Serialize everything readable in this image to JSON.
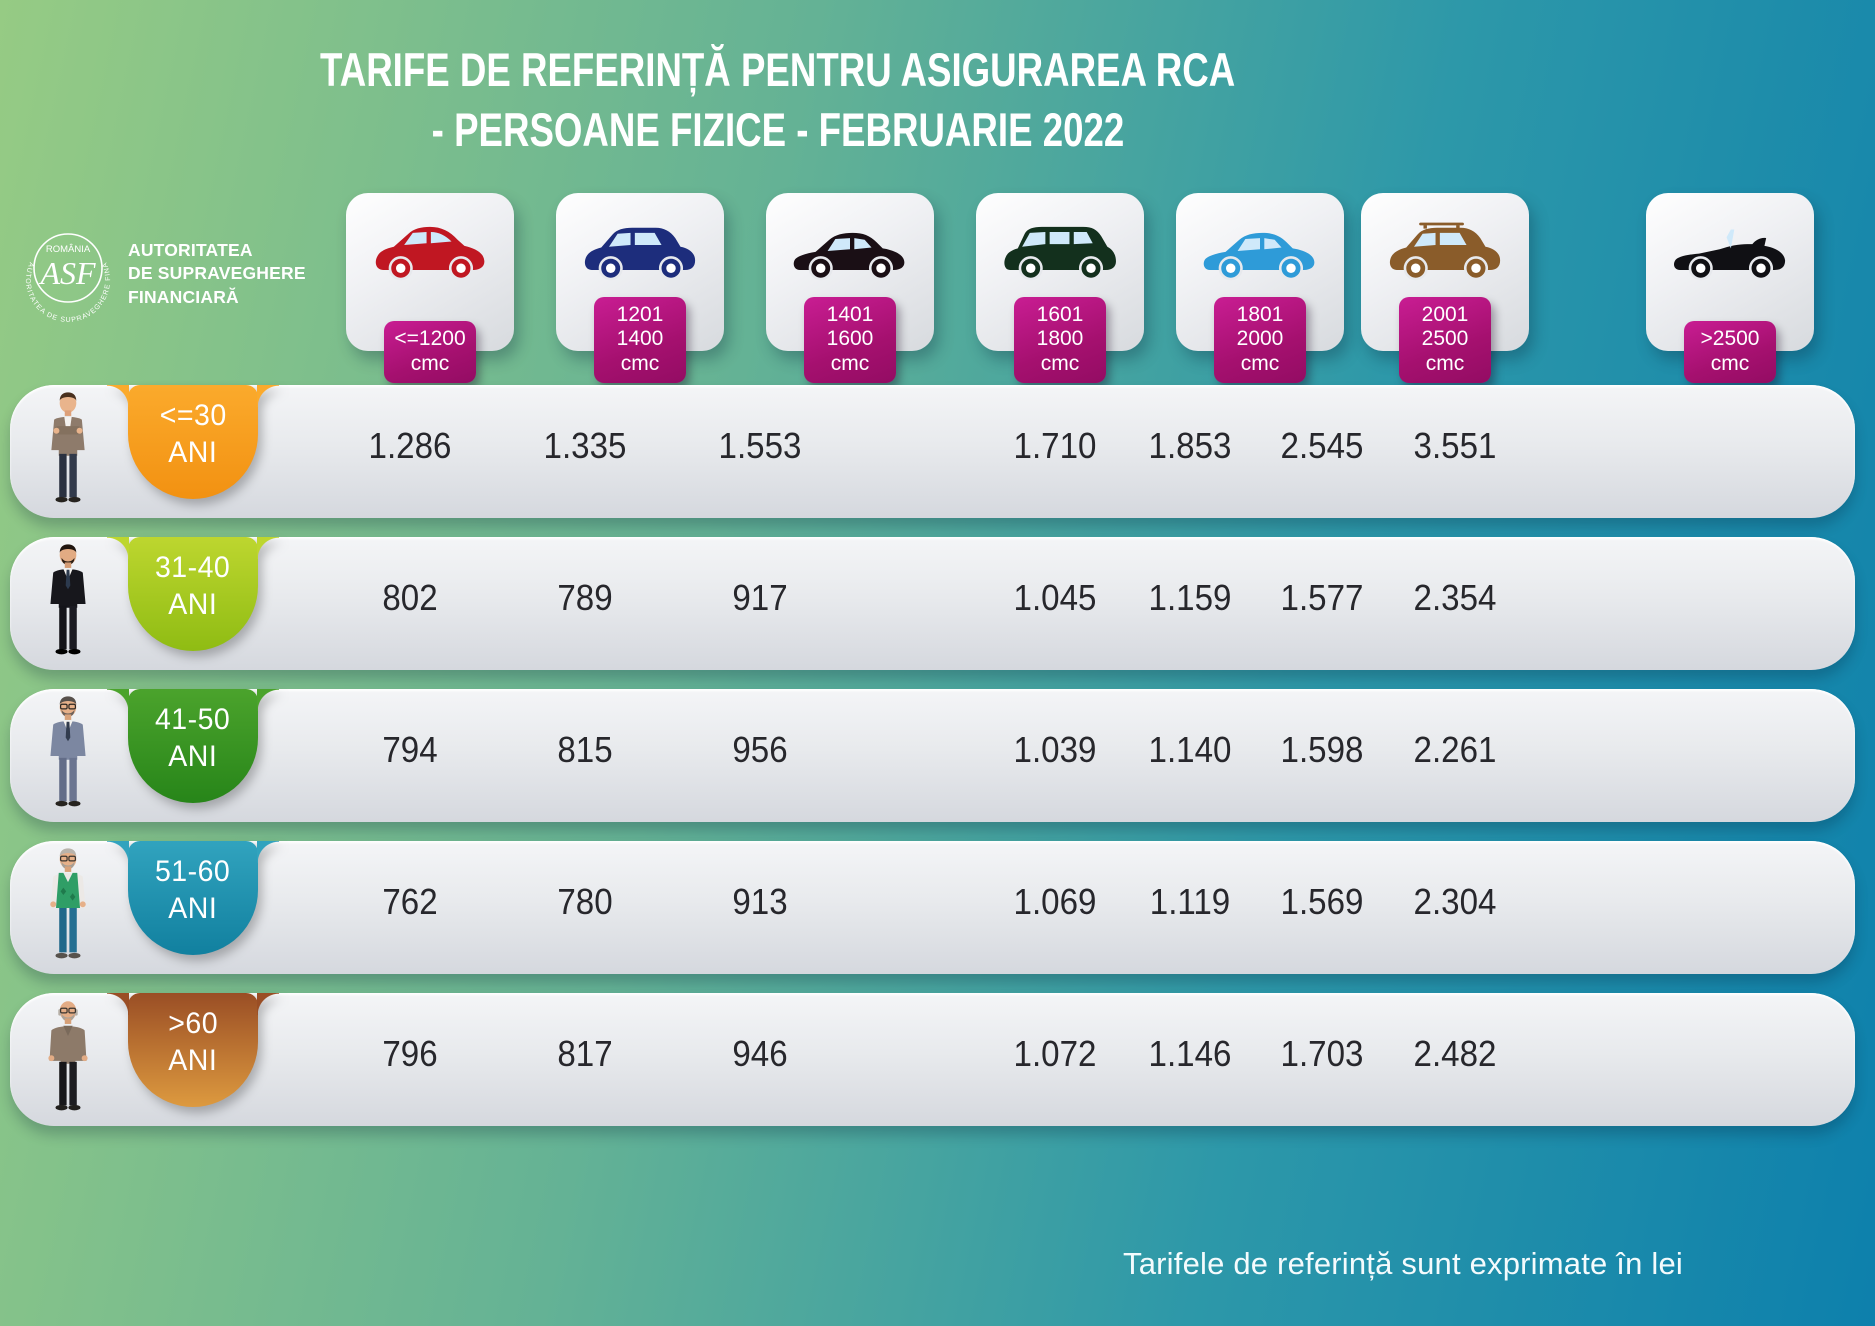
{
  "title": {
    "line1": "TARIFE DE REFERINȚĂ PENTRU ASIGURAREA RCA",
    "line2": "- PERSOANE FIZICE - FEBRUARIE 2022"
  },
  "logo": {
    "country": "ROMÂNIA",
    "monogram": "ASF",
    "ring_text": "AUTORITATEA DE SUPRAVEGHERE FINANCIARĂ",
    "org": [
      "AUTORITATEA",
      "DE SUPRAVEGHERE",
      "FINANCIARĂ"
    ]
  },
  "header": {
    "columns": [
      {
        "car": "hatchback",
        "car_name": "red-hatchback",
        "color": "#c01722",
        "label_lines": [
          "<=1200",
          "cmc"
        ]
      },
      {
        "car": "suv",
        "car_name": "dark-blue-crossover",
        "color": "#1d2d7c",
        "label_lines": [
          "1201",
          "1400",
          "cmc"
        ]
      },
      {
        "car": "sedan",
        "car_name": "black-sedan",
        "color": "#1a0f15",
        "label_lines": [
          "1401",
          "1600",
          "cmc"
        ]
      },
      {
        "car": "minivan",
        "car_name": "dark-green-minivan",
        "color": "#13301d",
        "label_lines": [
          "1601",
          "1800",
          "cmc"
        ]
      },
      {
        "car": "sedan",
        "car_name": "light-blue-sedan",
        "color": "#2e9bd8",
        "label_lines": [
          "1801",
          "2000",
          "cmc"
        ]
      },
      {
        "car": "suv-rails",
        "car_name": "brown-suv",
        "color": "#8a5c2a",
        "label_lines": [
          "2001",
          "2500",
          "cmc"
        ]
      },
      {
        "car": "convertible",
        "car_name": "black-convertible",
        "color": "#101014",
        "label_lines": [
          ">2500",
          "cmc"
        ]
      }
    ]
  },
  "rows": [
    {
      "age": "<=30",
      "unit": "ANI",
      "person": "person-1",
      "tab_colors": [
        "#fbaa2c",
        "#f29111"
      ],
      "values": [
        "1.286",
        "1.335",
        "1.553",
        "1.710",
        "1.853",
        "2.545",
        "3.551"
      ]
    },
    {
      "age": "31-40",
      "unit": "ANI",
      "person": "person-2",
      "tab_colors": [
        "#bdd62f",
        "#8fbc13"
      ],
      "values": [
        "802",
        "789",
        "917",
        "1.045",
        "1.159",
        "1.577",
        "2.354"
      ]
    },
    {
      "age": "41-50",
      "unit": "ANI",
      "person": "person-3",
      "tab_colors": [
        "#4ba32c",
        "#278519"
      ],
      "values": [
        "794",
        "815",
        "956",
        "1.039",
        "1.140",
        "1.598",
        "2.261"
      ]
    },
    {
      "age": "51-60",
      "unit": "ANI",
      "person": "person-4",
      "tab_colors": [
        "#31a3be",
        "#11809f"
      ],
      "values": [
        "762",
        "780",
        "913",
        "1.069",
        "1.119",
        "1.569",
        "2.304"
      ]
    },
    {
      "age": ">60",
      "unit": "ANI",
      "person": "person-5",
      "tab_colors": [
        "#9a4e25",
        "#dd9a3f"
      ],
      "values": [
        "796",
        "817",
        "946",
        "1.072",
        "1.146",
        "1.703",
        "2.482"
      ]
    }
  ],
  "footnote": "Tarifele de referință sunt exprimate în lei",
  "chart_data": {
    "type": "table",
    "title": "TARIFE DE REFERINȚĂ PENTRU ASIGURAREA RCA - PERSOANE FIZICE - FEBRUARIE 2022",
    "unit": "lei",
    "columns": [
      "<=1200 cmc",
      "1201-1400 cmc",
      "1401-1600 cmc",
      "1601-1800 cmc",
      "1801-2000 cmc",
      "2001-2500 cmc",
      ">2500 cmc"
    ],
    "rows": [
      "<=30 ANI",
      "31-40 ANI",
      "41-50 ANI",
      "51-60 ANI",
      ">60 ANI"
    ],
    "values": [
      [
        1286,
        1335,
        1553,
        1710,
        1853,
        2545,
        3551
      ],
      [
        802,
        789,
        917,
        1045,
        1159,
        1577,
        2354
      ],
      [
        794,
        815,
        956,
        1039,
        1140,
        1598,
        2261
      ],
      [
        762,
        780,
        913,
        1069,
        1119,
        1569,
        2304
      ],
      [
        796,
        817,
        946,
        1072,
        1146,
        1703,
        2482
      ]
    ],
    "note": "Tarifele de referință sunt exprimate în lei"
  }
}
